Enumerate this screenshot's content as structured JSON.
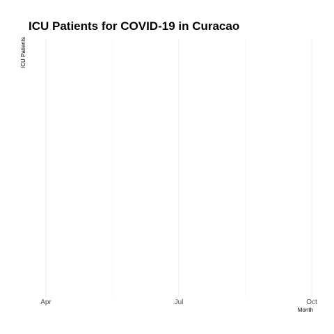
{
  "chart_data": {
    "type": "line",
    "title": "ICU Patients for COVID-19 in Curacao",
    "xlabel": "Month",
    "ylabel": "ICU Patients",
    "x_ticks": [
      "Apr",
      "Jul",
      "Oct"
    ],
    "series": [],
    "grid": true,
    "legend": "none"
  }
}
